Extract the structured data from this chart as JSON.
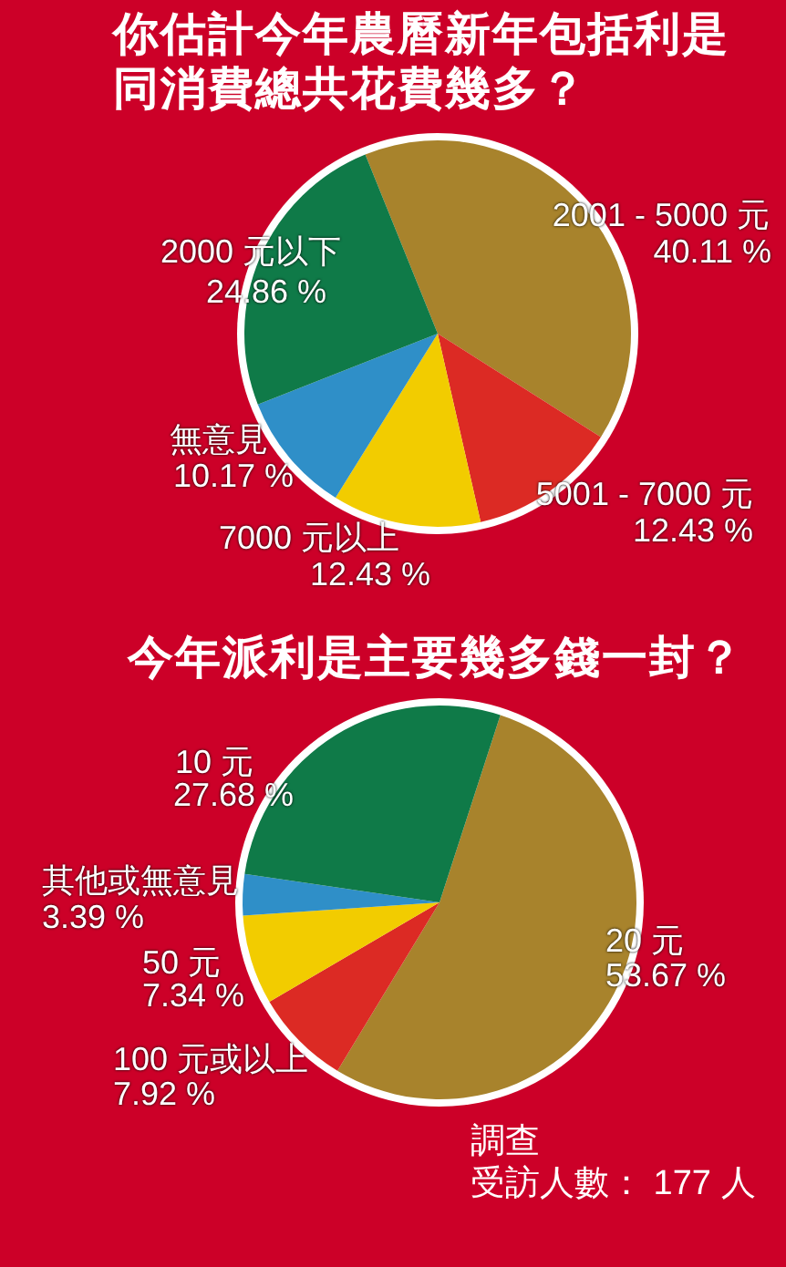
{
  "chart_data": [
    {
      "type": "pie",
      "title": "你估計今年農曆新年包括利是同消費總共花費幾多？",
      "categories": [
        "2001 - 5000 元",
        "5001 - 7000 元",
        "7000 元以上",
        "無意見",
        "2000 元以下"
      ],
      "values": [
        40.11,
        12.43,
        12.43,
        10.17,
        24.86
      ],
      "colors": [
        "#a8832c",
        "#dc2a24",
        "#f2cc00",
        "#2f8fc8",
        "#0f7a48"
      ],
      "value_labels": [
        "40.11 %",
        "12.43 %",
        "12.43 %",
        "10.17 %",
        "24.86 %"
      ]
    },
    {
      "type": "pie",
      "title": "今年派利是主要幾多錢一封？",
      "categories": [
        "20 元",
        "100 元或以上",
        "50 元",
        "其他或無意見",
        "10 元"
      ],
      "values": [
        53.67,
        7.92,
        7.34,
        3.39,
        27.68
      ],
      "colors": [
        "#a8832c",
        "#dc2a24",
        "#f2cc00",
        "#2f8fc8",
        "#0f7a48"
      ],
      "value_labels": [
        "53.67 %",
        "7.92 %",
        "7.34 %",
        "3.39 %",
        "27.68 %"
      ],
      "annotations": [
        "調查",
        "受訪人數： 177 人"
      ]
    }
  ]
}
